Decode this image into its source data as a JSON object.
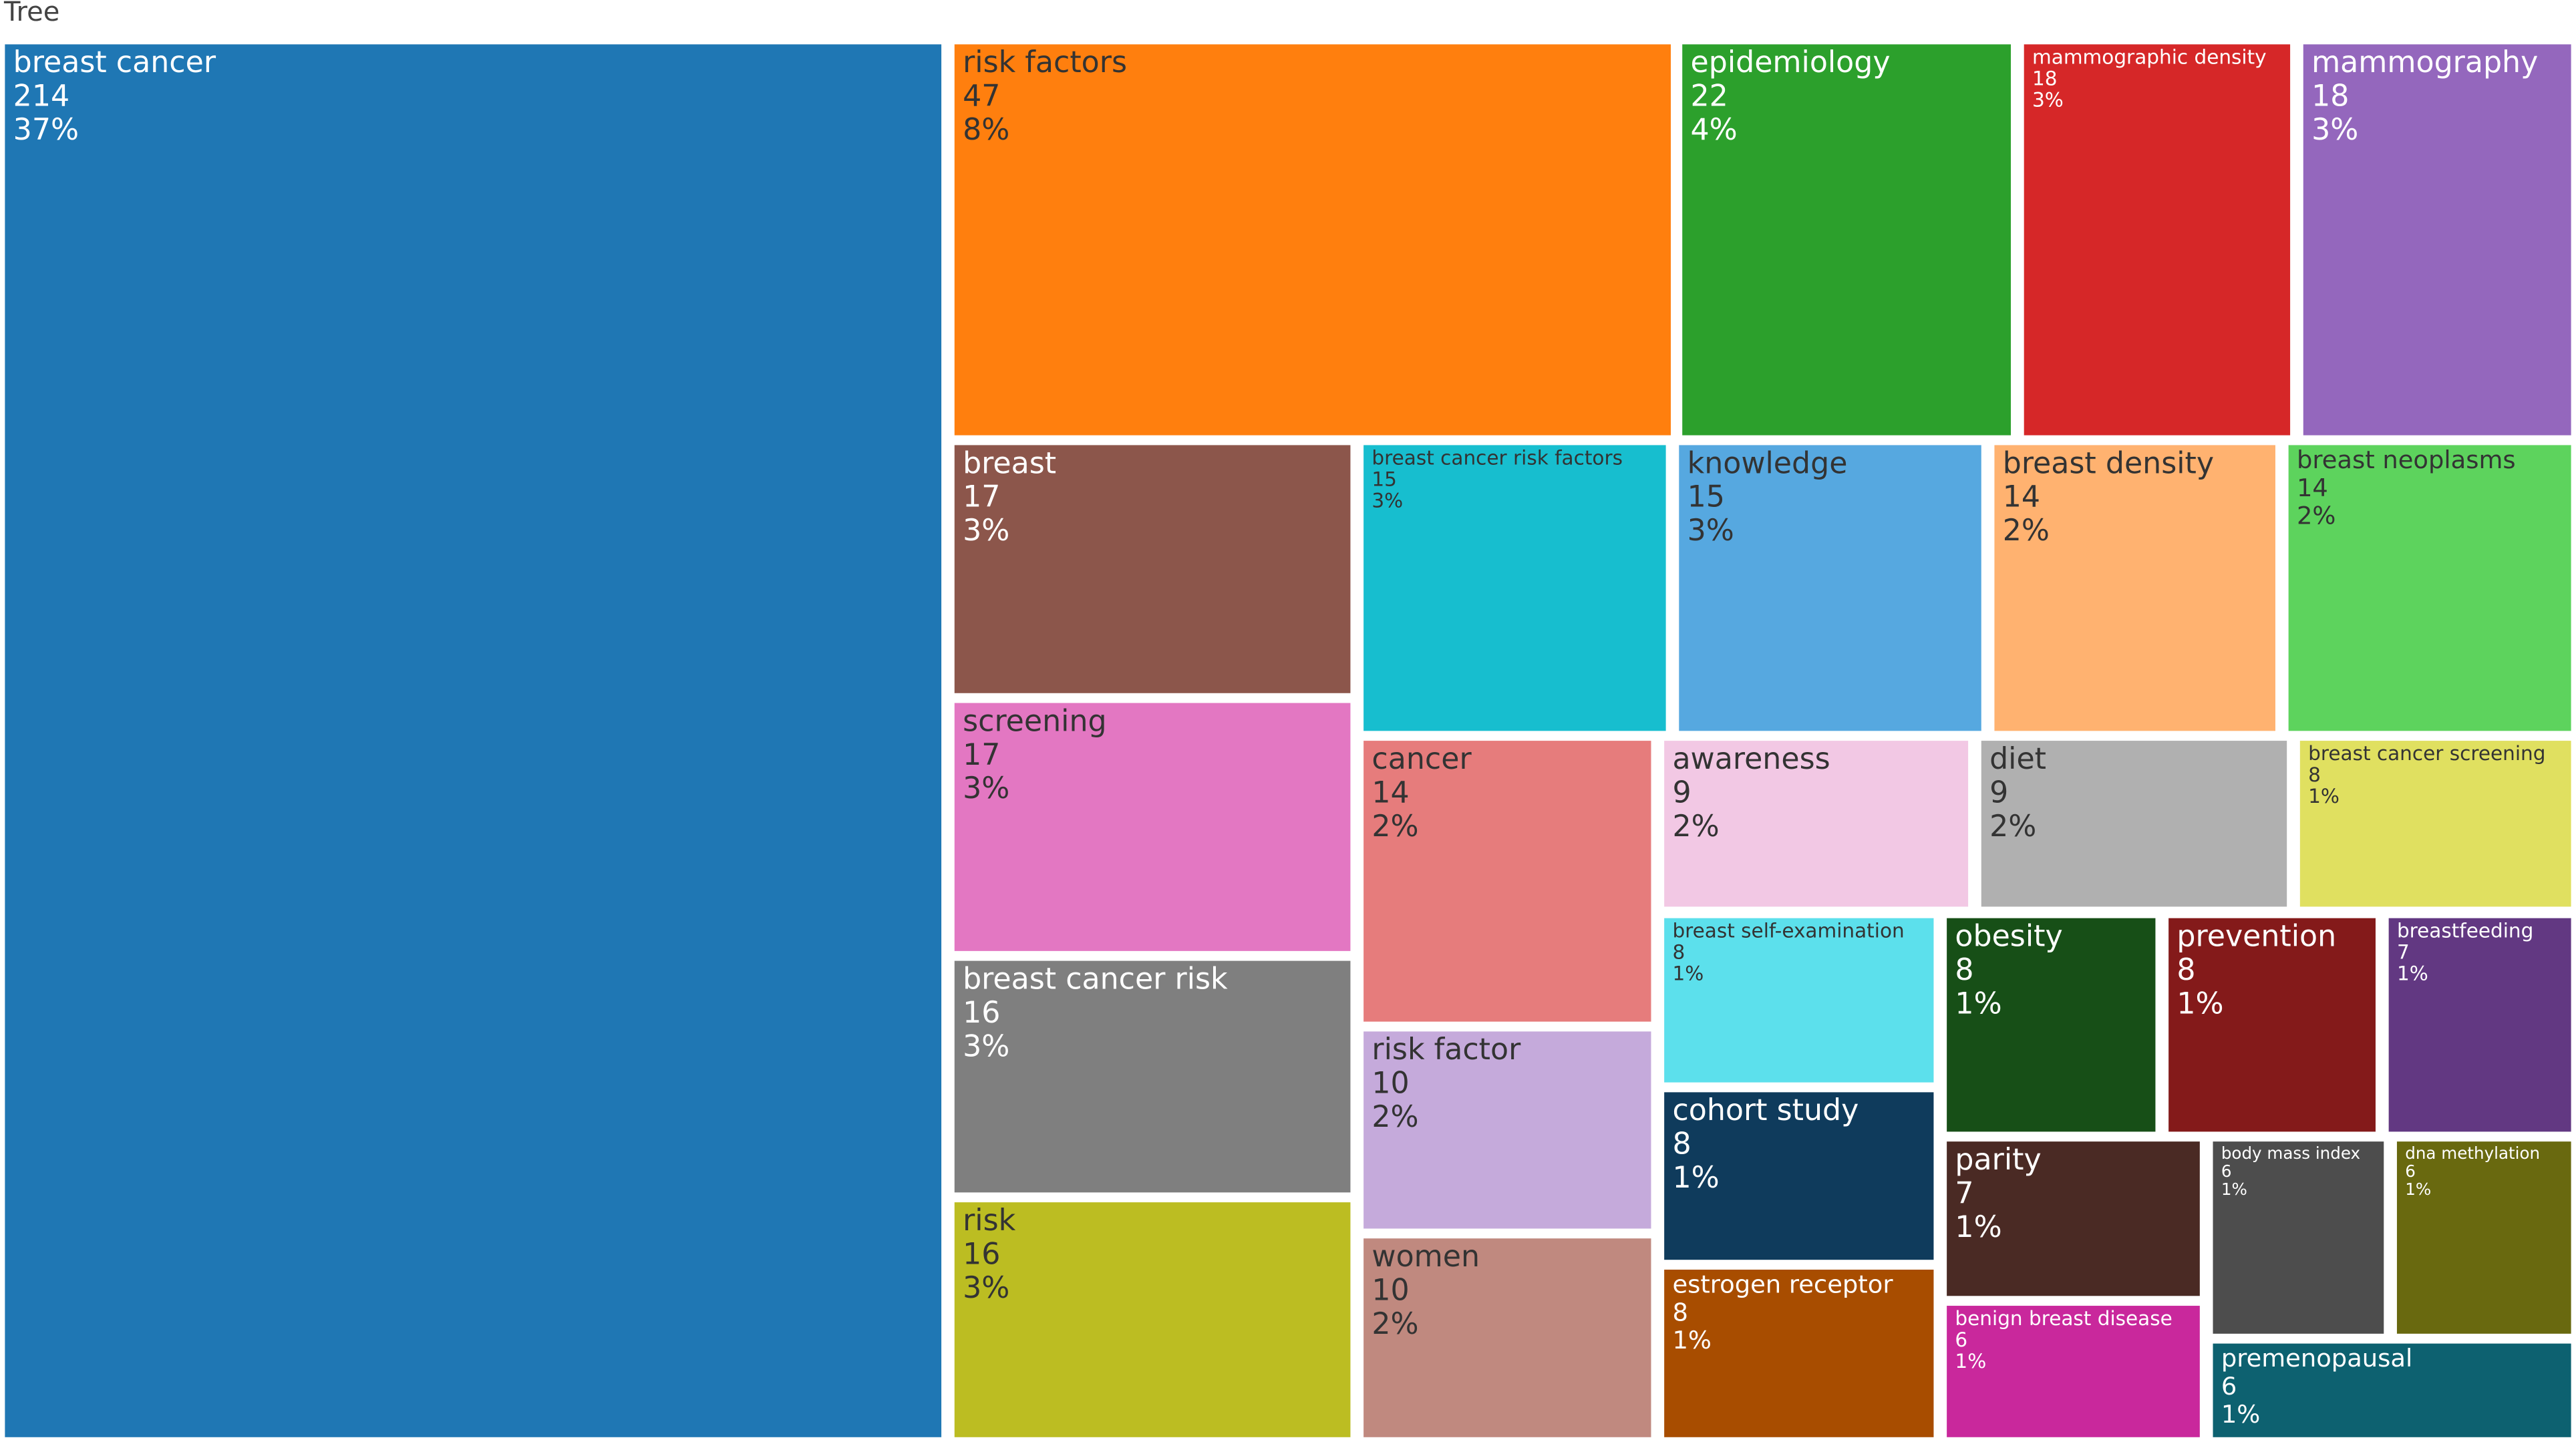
{
  "chart_data": {
    "type": "treemap",
    "title": "Tree",
    "categories": [
      "breast cancer",
      "risk factors",
      "epidemiology",
      "mammographic density",
      "mammography",
      "breast",
      "breast cancer risk factors",
      "knowledge",
      "breast density",
      "breast neoplasms",
      "screening",
      "breast cancer risk",
      "risk",
      "cancer",
      "risk factor",
      "women",
      "awareness",
      "diet",
      "breast cancer screening",
      "breast self-examination",
      "obesity",
      "prevention",
      "breastfeeding",
      "cohort study",
      "estrogen receptor",
      "parity",
      "body mass index",
      "dna methylation",
      "benign breast disease",
      "premenopausal"
    ],
    "values": [
      214,
      47,
      22,
      18,
      18,
      17,
      15,
      15,
      14,
      14,
      17,
      16,
      16,
      14,
      10,
      10,
      9,
      9,
      8,
      8,
      8,
      8,
      7,
      8,
      8,
      7,
      6,
      6,
      6,
      6
    ],
    "percent_labels": [
      "37%",
      "8%",
      "4%",
      "3%",
      "3%",
      "3%",
      "3%",
      "3%",
      "2%",
      "2%",
      "3%",
      "3%",
      "3%",
      "2%",
      "2%",
      "2%",
      "2%",
      "2%",
      "1%",
      "1%",
      "1%",
      "1%",
      "1%",
      "1%",
      "1%",
      "1%",
      "1%",
      "1%",
      "1%",
      "1%"
    ],
    "colors": [
      "#1f77b4",
      "#ff7f0e",
      "#2ca02c",
      "#d62728",
      "#9467bd",
      "#8c564b",
      "#17becf",
      "#56a8e0",
      "#ffb270",
      "#5dd35d",
      "#e377c2",
      "#7f7f7f",
      "#bcbd22",
      "#e67c7c",
      "#c5aadb",
      "#c0897f",
      "#f2c8e4",
      "#b0b0b0",
      "#e0e060",
      "#5ce0ec",
      "#174f17",
      "#841a1a",
      "#623882",
      "#0f3b5c",
      "#a84d00",
      "#4a2a24",
      "#4d4d4d",
      "#69690f",
      "#c9289c",
      "#0d6170"
    ]
  }
}
